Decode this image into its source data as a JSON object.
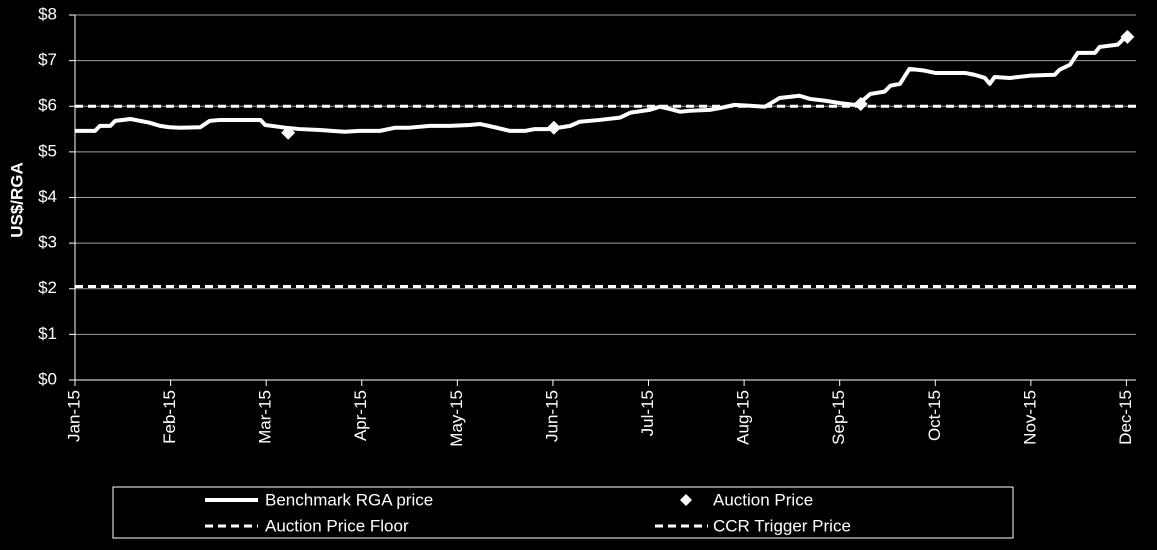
{
  "chart_data": {
    "type": "line",
    "y_label": "US$/RGA",
    "xlim": [
      0,
      11.1
    ],
    "xticks": [
      {
        "value": 0,
        "label": "Jan-15"
      },
      {
        "value": 1,
        "label": "Feb-15"
      },
      {
        "value": 2,
        "label": "Mar-15"
      },
      {
        "value": 3,
        "label": "Apr-15"
      },
      {
        "value": 4,
        "label": "May-15"
      },
      {
        "value": 5,
        "label": "Jun-15"
      },
      {
        "value": 6,
        "label": "Jul-15"
      },
      {
        "value": 7,
        "label": "Aug-15"
      },
      {
        "value": 8,
        "label": "Sep-15"
      },
      {
        "value": 9,
        "label": "Oct-15"
      },
      {
        "value": 10,
        "label": "Nov-15"
      },
      {
        "value": 11,
        "label": "Dec-15"
      }
    ],
    "ylim": [
      0,
      8
    ],
    "yticks": [
      {
        "value": 0,
        "label": "$0"
      },
      {
        "value": 1,
        "label": "$1"
      },
      {
        "value": 2,
        "label": "$2"
      },
      {
        "value": 3,
        "label": "$3"
      },
      {
        "value": 4,
        "label": "$4"
      },
      {
        "value": 5,
        "label": "$5"
      },
      {
        "value": 6,
        "label": "$6"
      },
      {
        "value": 7,
        "label": "$7"
      },
      {
        "value": 8,
        "label": "$8"
      }
    ],
    "grid": true,
    "legend": "bottom",
    "series": [
      {
        "name": "Benchmark RGA price",
        "type": "line",
        "color": "#ffffff",
        "x": [
          0,
          0.21,
          0.26,
          0.37,
          0.42,
          0.58,
          0.78,
          0.89,
          0.99,
          1.1,
          1.31,
          1.41,
          1.52,
          1.94,
          1.99,
          2.2,
          2.35,
          2.56,
          2.82,
          2.98,
          3.19,
          3.35,
          3.5,
          3.71,
          3.92,
          4.13,
          4.24,
          4.39,
          4.55,
          4.71,
          4.81,
          4.97,
          5.18,
          5.28,
          5.49,
          5.7,
          5.81,
          6.01,
          6.12,
          6.22,
          6.33,
          6.43,
          6.64,
          6.75,
          6.9,
          7.06,
          7.22,
          7.37,
          7.58,
          7.69,
          7.85,
          8.0,
          8.16,
          8.26,
          8.32,
          8.47,
          8.53,
          8.63,
          8.73,
          8.89,
          9.0,
          9.31,
          9.41,
          9.52,
          9.57,
          9.62,
          9.78,
          9.99,
          10.25,
          10.3,
          10.41,
          10.49,
          10.67,
          10.72,
          10.91,
          10.98
        ],
        "values": [
          5.46,
          5.46,
          5.57,
          5.57,
          5.68,
          5.72,
          5.64,
          5.57,
          5.54,
          5.53,
          5.54,
          5.68,
          5.7,
          5.7,
          5.59,
          5.53,
          5.5,
          5.48,
          5.44,
          5.46,
          5.46,
          5.53,
          5.53,
          5.57,
          5.57,
          5.59,
          5.61,
          5.54,
          5.46,
          5.46,
          5.5,
          5.5,
          5.57,
          5.66,
          5.7,
          5.75,
          5.86,
          5.92,
          5.99,
          5.94,
          5.88,
          5.9,
          5.92,
          5.96,
          6.03,
          6.01,
          5.99,
          6.18,
          6.23,
          6.16,
          6.12,
          6.07,
          6.03,
          6.16,
          6.27,
          6.32,
          6.45,
          6.49,
          6.82,
          6.78,
          6.73,
          6.73,
          6.69,
          6.62,
          6.49,
          6.64,
          6.62,
          6.67,
          6.69,
          6.8,
          6.91,
          7.17,
          7.17,
          7.3,
          7.35,
          7.5
        ]
      },
      {
        "name": "Auction Price",
        "type": "scatter",
        "marker": "diamond",
        "color": "#ffffff",
        "x": [
          2.23,
          5.01,
          8.22,
          11.01
        ],
        "values": [
          5.42,
          5.53,
          6.05,
          7.52
        ]
      }
    ],
    "reference_lines": [
      {
        "name": "Auction Price Floor",
        "value": 2.05,
        "color": "#ffffff",
        "dashed": true
      },
      {
        "name": "CCR Trigger Price",
        "value": 6,
        "color": "#ffffff",
        "dashed": true
      }
    ]
  }
}
